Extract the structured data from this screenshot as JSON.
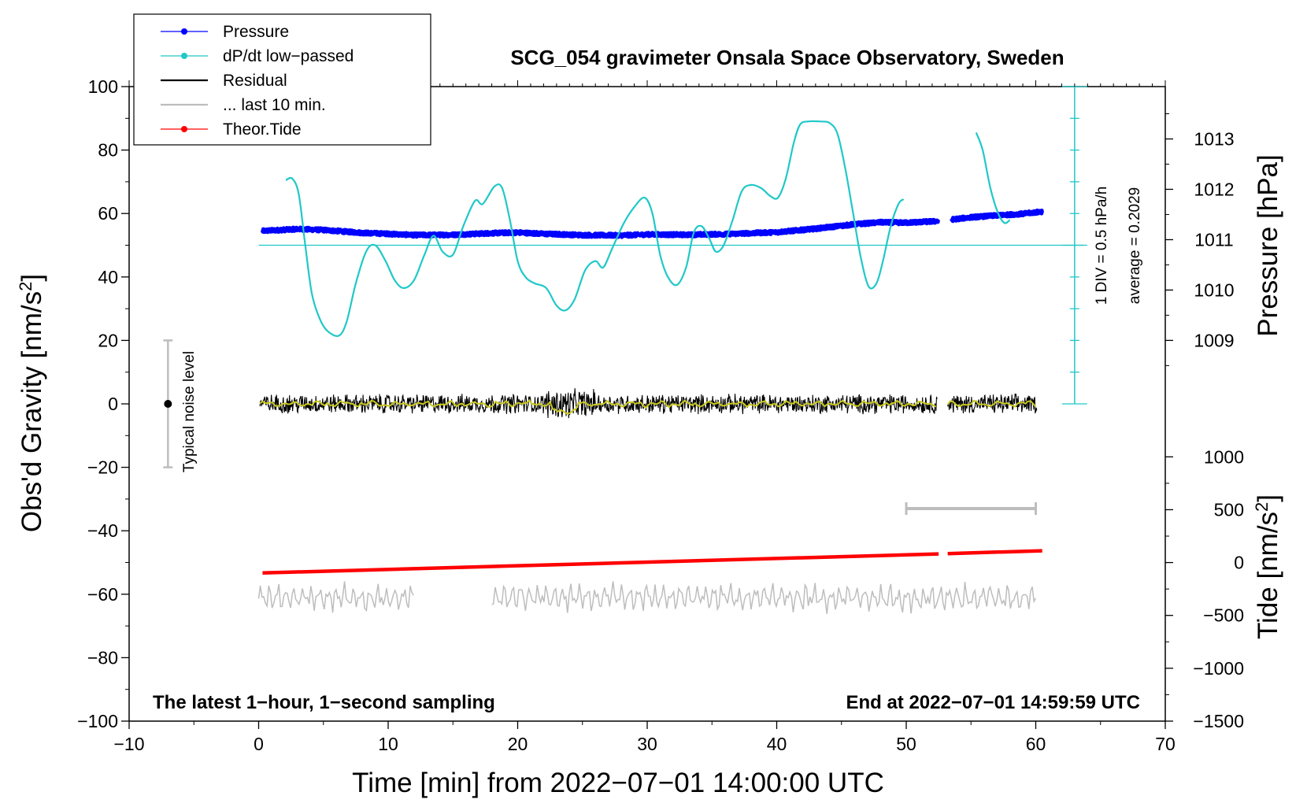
{
  "chart_data": {
    "type": "line",
    "title": "SCG_054 gravimeter Onsala Space Observatory, Sweden",
    "xlabel": "Time [min] from 2022−07−01 14:00:00 UTC",
    "ylabel_main": "Obs'd Gravity [nm/s",
    "ylabel_sup": "2",
    "ylabel_close": "]",
    "ylabel_pressure": "Pressure [hPa]",
    "ylabel_tide": "Tide [nm/s",
    "ylabel_tide_sup": "2",
    "ylabel_tide_close": "]",
    "xlim": [
      -10,
      70
    ],
    "ylim": [
      -100,
      100
    ],
    "x_ticks": [
      -10,
      0,
      10,
      20,
      30,
      40,
      50,
      60,
      70
    ],
    "x_tick_labels": [
      "−10",
      "0",
      "10",
      "20",
      "30",
      "40",
      "50",
      "60",
      "70"
    ],
    "y_ticks": [
      -100,
      -80,
      -60,
      -40,
      -20,
      0,
      20,
      40,
      60,
      80,
      100
    ],
    "y_tick_labels": [
      "−100",
      "−80",
      "−60",
      "−40",
      "−20",
      "0",
      "20",
      "40",
      "60",
      "80",
      "100"
    ],
    "pressure_axis": {
      "ticks": [
        1009,
        1010,
        1011,
        1012,
        1013
      ],
      "tick_labels": [
        "1009",
        "1010",
        "1011",
        "1012",
        "1013"
      ],
      "mapping_gravity": [
        [
          1009,
          20
        ],
        [
          1013,
          83.5
        ]
      ]
    },
    "tide_axis": {
      "ticks": [
        -1500,
        -1000,
        -500,
        0,
        500,
        1000
      ],
      "tick_labels": [
        "−1500",
        "−1000",
        "−500",
        "0",
        "500",
        "1000"
      ],
      "mapping_gravity": [
        [
          -1500,
          -100
        ],
        [
          1000,
          -16.7
        ]
      ]
    },
    "notes": {
      "left": "The latest 1−hour, 1−second sampling",
      "right": "End at 2022−07−01 14:59:59 UTC"
    },
    "noise_bar": {
      "label": "Typical noise level",
      "x": -7,
      "center": 0,
      "low": -20,
      "high": 20
    },
    "dpdt_scale": {
      "line1": "1 DIV = 0.5 hPa/h",
      "line2": "average = 0.2029",
      "x": 63,
      "y_low": 0,
      "y_high": 100,
      "zero_line_y": 50
    },
    "last10_bar": {
      "x_start": 50,
      "x_end": 60,
      "y": -33
    },
    "legend": [
      {
        "label": "Pressure",
        "color": "#0000ff",
        "marker": true
      },
      {
        "label": "dP/dt low−passed",
        "color": "#20c8c8",
        "marker": true
      },
      {
        "label": "Residual",
        "color": "#000000",
        "marker": false
      },
      {
        "label": "... last 10 min.",
        "color": "#bdbdbd",
        "marker": false
      },
      {
        "label": "Theor.Tide",
        "color": "#ff0000",
        "marker": true
      }
    ],
    "series": [
      {
        "name": "Pressure",
        "color": "#0000ff",
        "unit": "gravity-axis",
        "segments": [
          [
            [
              0.3,
              54.5
            ],
            [
              3,
              55.1
            ],
            [
              5,
              54.8
            ],
            [
              8,
              53.9
            ],
            [
              10,
              53.6
            ],
            [
              12,
              53.2
            ],
            [
              15,
              53.3
            ],
            [
              18,
              53.8
            ],
            [
              20,
              54
            ],
            [
              22,
              53.6
            ],
            [
              25,
              53.2
            ],
            [
              28,
              53.1
            ],
            [
              30,
              53.4
            ],
            [
              33,
              53.3
            ],
            [
              36,
              53.5
            ],
            [
              40,
              54.1
            ],
            [
              43,
              55.2
            ],
            [
              46,
              56.6
            ],
            [
              48,
              57.2
            ],
            [
              50,
              57.1
            ],
            [
              52.5,
              57.6
            ]
          ],
          [
            [
              53.5,
              58.1
            ],
            [
              55,
              58.8
            ],
            [
              57,
              59.4
            ],
            [
              59,
              59.9
            ],
            [
              60.5,
              60.6
            ]
          ]
        ]
      },
      {
        "name": "dP/dt low-passed",
        "color": "#20c8c8",
        "unit": "gravity-axis",
        "segments": [
          [
            [
              2.1,
              70.5
            ],
            [
              2.6,
              71
            ],
            [
              3.1,
              66
            ],
            [
              3.6,
              50
            ],
            [
              4.1,
              35
            ],
            [
              4.7,
              27
            ],
            [
              5.3,
              23
            ],
            [
              6.2,
              21.5
            ],
            [
              6.8,
              26
            ],
            [
              7.5,
              38
            ],
            [
              8.3,
              48
            ],
            [
              9,
              50
            ],
            [
              9.8,
              45
            ],
            [
              10.5,
              39
            ],
            [
              11.2,
              36.5
            ],
            [
              12,
              39
            ],
            [
              12.8,
              47
            ],
            [
              13.5,
              53
            ],
            [
              14.2,
              48
            ],
            [
              15,
              47
            ],
            [
              15.8,
              56
            ],
            [
              16.7,
              64
            ],
            [
              17.3,
              63
            ],
            [
              18.2,
              68.5
            ],
            [
              18.8,
              68
            ],
            [
              19.4,
              58
            ],
            [
              20,
              45
            ],
            [
              20.6,
              40
            ],
            [
              21.3,
              38
            ],
            [
              22.2,
              36.5
            ],
            [
              23,
              31
            ],
            [
              23.7,
              29.5
            ],
            [
              24.4,
              33
            ],
            [
              25.2,
              42
            ],
            [
              26,
              45
            ],
            [
              26.6,
              43
            ],
            [
              27.3,
              49
            ],
            [
              28.2,
              57
            ],
            [
              29,
              62
            ],
            [
              29.8,
              65
            ],
            [
              30.4,
              60
            ],
            [
              31,
              47
            ],
            [
              31.6,
              40
            ],
            [
              32.3,
              37.5
            ],
            [
              33,
              43
            ],
            [
              33.6,
              54
            ],
            [
              34.2,
              56
            ],
            [
              34.8,
              52
            ],
            [
              35.3,
              48
            ],
            [
              35.9,
              50
            ],
            [
              36.6,
              58
            ],
            [
              37.3,
              67
            ],
            [
              38,
              69
            ],
            [
              38.8,
              68
            ],
            [
              39.5,
              65.5
            ],
            [
              40.1,
              65
            ],
            [
              40.7,
              71
            ],
            [
              41.3,
              82
            ],
            [
              41.8,
              88
            ],
            [
              42.4,
              89
            ],
            [
              43.4,
              89
            ],
            [
              44.1,
              88.5
            ],
            [
              44.7,
              85
            ],
            [
              45.3,
              74
            ],
            [
              45.9,
              60
            ],
            [
              46.5,
              46
            ],
            [
              47.1,
              37
            ],
            [
              47.7,
              38
            ],
            [
              48.2,
              45
            ],
            [
              48.8,
              56
            ],
            [
              49.4,
              63
            ],
            [
              49.8,
              64.5
            ]
          ],
          [
            [
              55.4,
              85.5
            ],
            [
              55.9,
              80
            ],
            [
              56.5,
              68
            ],
            [
              57.1,
              60
            ],
            [
              57.6,
              57
            ],
            [
              58,
              58
            ]
          ]
        ]
      },
      {
        "name": "Residual",
        "color": "#000000",
        "unit": "gravity-axis",
        "segments": [
          [
            0.1,
            52.4
          ],
          [
            53.2,
            60.1
          ]
        ],
        "amplitude": 2.6
      },
      {
        "name": "Residual smoothed",
        "color": "#c8c820",
        "unit": "gravity-axis",
        "segments": [
          [
            0.1,
            52.4
          ],
          [
            53.2,
            60.1
          ]
        ]
      },
      {
        "name": "Theor.Tide",
        "color": "#ff0000",
        "unit": "gravity-axis",
        "segments": [
          [
            [
              0.3,
              -53.3
            ],
            [
              52.5,
              -47.3
            ]
          ],
          [
            [
              53.2,
              -47.2
            ],
            [
              60.5,
              -46.3
            ]
          ]
        ]
      },
      {
        "name": "... last 10 min.",
        "color": "#bdbdbd",
        "unit": "gravity-axis",
        "center": -61,
        "segments": [
          [
            0,
            12
          ],
          [
            18,
            60
          ]
        ]
      }
    ]
  }
}
